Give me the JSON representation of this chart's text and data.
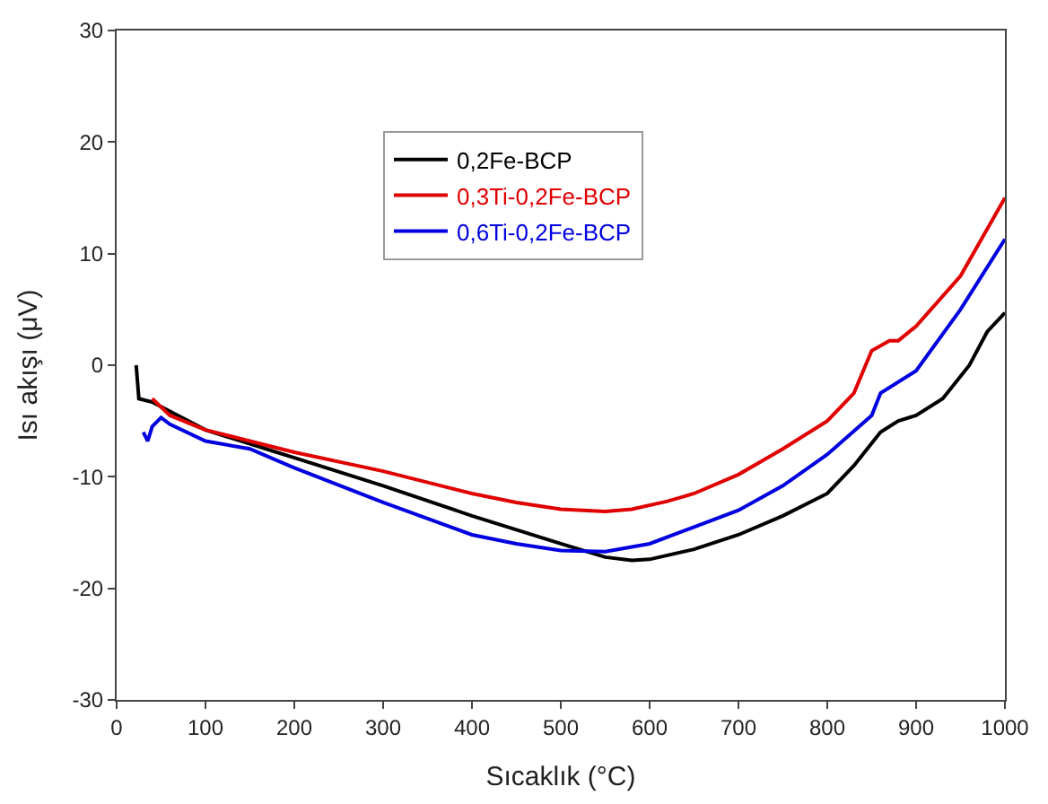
{
  "chart_data": {
    "type": "line",
    "xlabel": "Sıcaklık (°C)",
    "ylabel": "Isı akışı (μV)",
    "xlim": [
      0,
      1000
    ],
    "xticks": [
      0,
      100,
      200,
      300,
      400,
      500,
      600,
      700,
      800,
      900,
      1000
    ],
    "ylim": [
      -30,
      30
    ],
    "yticks": [
      -30,
      -20,
      -10,
      0,
      10,
      20,
      30
    ],
    "legend": "top left",
    "series": [
      {
        "name": "0,2Fe-BCP",
        "color": "#000000",
        "x": [
          22,
          25,
          40,
          100,
          200,
          300,
          400,
          500,
          550,
          580,
          600,
          650,
          700,
          750,
          800,
          830,
          860,
          880,
          900,
          930,
          960,
          980,
          1000
        ],
        "values": [
          0,
          -3,
          -3.3,
          -5.8,
          -8.3,
          -10.8,
          -13.5,
          -16,
          -17.2,
          -17.5,
          -17.4,
          -16.5,
          -15.2,
          -13.5,
          -11.5,
          -9,
          -6,
          -5,
          -4.5,
          -3,
          0,
          3,
          4.7
        ]
      },
      {
        "name": "0,3Ti-0,2Fe-BCP",
        "color": "#e00000",
        "x": [
          40,
          60,
          100,
          200,
          300,
          400,
          450,
          500,
          550,
          580,
          620,
          650,
          700,
          750,
          800,
          830,
          850,
          870,
          880,
          900,
          950,
          1000
        ],
        "values": [
          -3,
          -4.5,
          -5.8,
          -7.8,
          -9.5,
          -11.5,
          -12.3,
          -12.9,
          -13.1,
          -12.9,
          -12.2,
          -11.5,
          -9.8,
          -7.5,
          -5,
          -2.5,
          1.3,
          2.2,
          2.2,
          3.5,
          8,
          15
        ]
      },
      {
        "name": "0,6Ti-0,2Fe-BCP",
        "color": "#0000e0",
        "x": [
          30,
          35,
          40,
          50,
          60,
          100,
          150,
          200,
          300,
          400,
          450,
          500,
          550,
          600,
          650,
          700,
          750,
          800,
          850,
          860,
          900,
          950,
          1000
        ],
        "values": [
          -6,
          -6.8,
          -5.5,
          -4.7,
          -5.3,
          -6.8,
          -7.5,
          -9.2,
          -12.3,
          -15.2,
          -16,
          -16.6,
          -16.7,
          -16,
          -14.5,
          -13,
          -10.8,
          -8,
          -4.5,
          -2.5,
          -0.5,
          5,
          11.3
        ]
      }
    ]
  }
}
